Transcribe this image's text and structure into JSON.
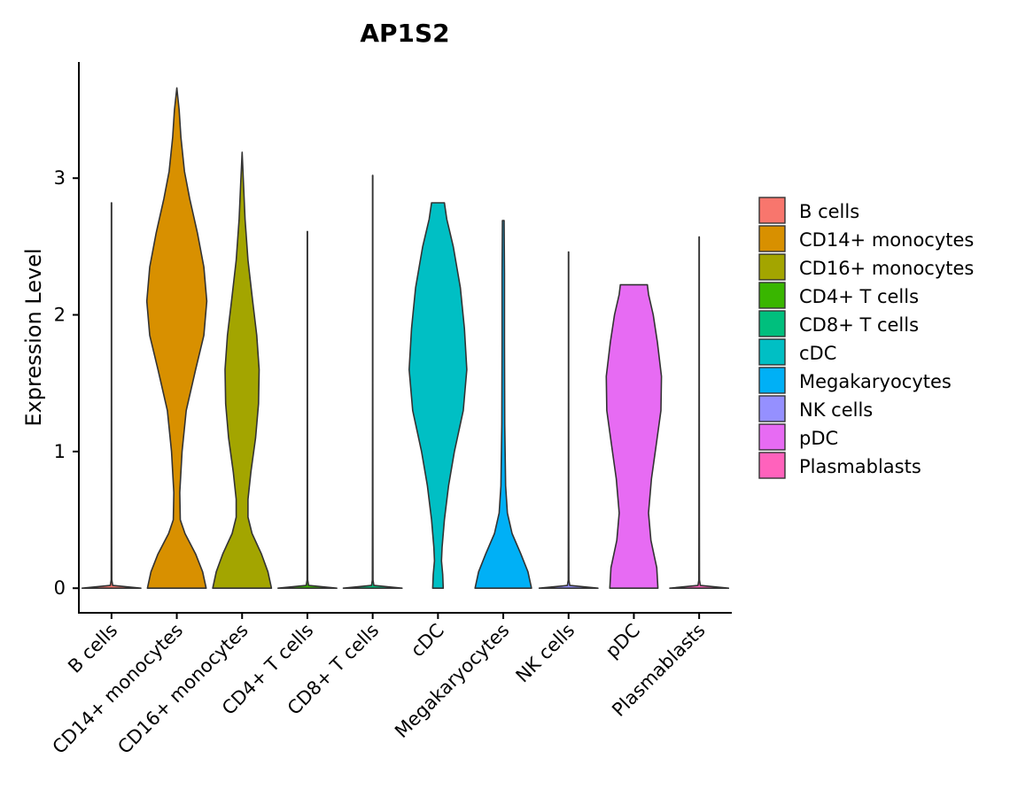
{
  "chart_data": {
    "type": "violin",
    "title": "AP1S2",
    "xlabel": "",
    "ylabel": "Expression Level",
    "ylim": [
      -0.18,
      3.85
    ],
    "yticks": [
      0,
      1,
      2,
      3
    ],
    "grid": false,
    "legend_position": "right",
    "categories": [
      "B cells",
      "CD14+ monocytes",
      "CD16+ monocytes",
      "CD4+ T cells",
      "CD8+ T cells",
      "cDC",
      "Megakaryocytes",
      "NK cells",
      "pDC",
      "Plasmablasts"
    ],
    "colors": [
      "#F8766D",
      "#D89000",
      "#A3A500",
      "#39B600",
      "#00BF7D",
      "#00BFC4",
      "#00B0F6",
      "#9590FF",
      "#E76BF3",
      "#FF62BC"
    ],
    "violins": [
      {
        "name": "B cells",
        "max": 2.82,
        "profile": [
          [
            0,
            0.5
          ],
          [
            0.02,
            0.02
          ],
          [
            0.06,
            0.006
          ],
          [
            0.5,
            0.004
          ],
          [
            1.5,
            0.003
          ],
          [
            2.82,
            0.003
          ]
        ]
      },
      {
        "name": "CD14+ monocytes",
        "max": 3.66,
        "profile": [
          [
            0,
            0.5
          ],
          [
            0.12,
            0.44
          ],
          [
            0.25,
            0.32
          ],
          [
            0.4,
            0.14
          ],
          [
            0.5,
            0.06
          ],
          [
            0.7,
            0.05
          ],
          [
            1.0,
            0.09
          ],
          [
            1.3,
            0.16
          ],
          [
            1.6,
            0.32
          ],
          [
            1.85,
            0.46
          ],
          [
            2.1,
            0.51
          ],
          [
            2.35,
            0.46
          ],
          [
            2.6,
            0.35
          ],
          [
            2.85,
            0.22
          ],
          [
            3.05,
            0.13
          ],
          [
            3.3,
            0.07
          ],
          [
            3.5,
            0.04
          ],
          [
            3.66,
            0.0
          ]
        ]
      },
      {
        "name": "CD16+ monocytes",
        "max": 3.19,
        "profile": [
          [
            0,
            0.5
          ],
          [
            0.12,
            0.44
          ],
          [
            0.25,
            0.33
          ],
          [
            0.4,
            0.17
          ],
          [
            0.52,
            0.1
          ],
          [
            0.65,
            0.1
          ],
          [
            0.85,
            0.15
          ],
          [
            1.1,
            0.23
          ],
          [
            1.35,
            0.28
          ],
          [
            1.6,
            0.29
          ],
          [
            1.85,
            0.25
          ],
          [
            2.1,
            0.18
          ],
          [
            2.4,
            0.1
          ],
          [
            2.7,
            0.05
          ],
          [
            2.95,
            0.025
          ],
          [
            3.19,
            0.0
          ]
        ]
      },
      {
        "name": "CD4+ T cells",
        "max": 2.61,
        "profile": [
          [
            0,
            0.5
          ],
          [
            0.02,
            0.02
          ],
          [
            0.06,
            0.006
          ],
          [
            0.5,
            0.004
          ],
          [
            1.5,
            0.003
          ],
          [
            2.61,
            0.003
          ]
        ]
      },
      {
        "name": "CD8+ T cells",
        "max": 3.02,
        "profile": [
          [
            0,
            0.5
          ],
          [
            0.02,
            0.02
          ],
          [
            0.06,
            0.006
          ],
          [
            0.5,
            0.004
          ],
          [
            1.5,
            0.003
          ],
          [
            3.02,
            0.003
          ]
        ]
      },
      {
        "name": "cDC",
        "max": 2.82,
        "profile": [
          [
            0,
            0.09
          ],
          [
            0.1,
            0.08
          ],
          [
            0.2,
            0.06
          ],
          [
            0.3,
            0.07
          ],
          [
            0.5,
            0.11
          ],
          [
            0.75,
            0.18
          ],
          [
            1.0,
            0.28
          ],
          [
            1.3,
            0.43
          ],
          [
            1.6,
            0.49
          ],
          [
            1.9,
            0.45
          ],
          [
            2.2,
            0.38
          ],
          [
            2.5,
            0.26
          ],
          [
            2.7,
            0.15
          ],
          [
            2.82,
            0.11
          ]
        ]
      },
      {
        "name": "Megakaryocytes",
        "max": 2.69,
        "profile": [
          [
            0,
            0.48
          ],
          [
            0.12,
            0.42
          ],
          [
            0.25,
            0.3
          ],
          [
            0.4,
            0.15
          ],
          [
            0.55,
            0.07
          ],
          [
            0.75,
            0.04
          ],
          [
            1.2,
            0.025
          ],
          [
            1.8,
            0.02
          ],
          [
            2.3,
            0.02
          ],
          [
            2.69,
            0.015
          ]
        ]
      },
      {
        "name": "NK cells",
        "max": 2.46,
        "profile": [
          [
            0,
            0.5
          ],
          [
            0.02,
            0.02
          ],
          [
            0.06,
            0.006
          ],
          [
            0.5,
            0.004
          ],
          [
            1.5,
            0.003
          ],
          [
            2.46,
            0.003
          ]
        ]
      },
      {
        "name": "pDC",
        "max": 2.22,
        "profile": [
          [
            0,
            0.41
          ],
          [
            0.15,
            0.39
          ],
          [
            0.35,
            0.29
          ],
          [
            0.55,
            0.25
          ],
          [
            0.8,
            0.3
          ],
          [
            1.05,
            0.38
          ],
          [
            1.3,
            0.46
          ],
          [
            1.55,
            0.47
          ],
          [
            1.8,
            0.4
          ],
          [
            2.0,
            0.33
          ],
          [
            2.15,
            0.25
          ],
          [
            2.22,
            0.23
          ]
        ]
      },
      {
        "name": "Plasmablasts",
        "max": 2.57,
        "profile": [
          [
            0,
            0.5
          ],
          [
            0.02,
            0.02
          ],
          [
            0.06,
            0.006
          ],
          [
            0.5,
            0.004
          ],
          [
            1.5,
            0.003
          ],
          [
            2.57,
            0.003
          ]
        ]
      }
    ]
  }
}
